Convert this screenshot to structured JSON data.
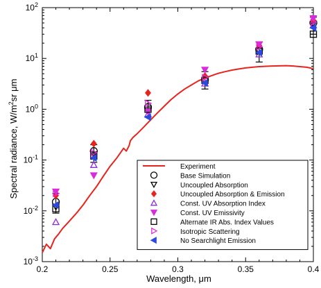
{
  "chart_data": {
    "type": "scatter",
    "xlabel": "Wavelength, μm",
    "ylabel_main": "Spectral radiance, W/m",
    "ylabel_sup": "2",
    "ylabel_rest": "sr μm",
    "xlim": [
      0.2,
      0.4
    ],
    "ylim": [
      0.001,
      100
    ],
    "yscale": "log",
    "grid": false,
    "legend_position": "lower-right",
    "x_ticks": [
      0.2,
      0.25,
      0.3,
      0.35,
      0.4
    ],
    "x_tick_labels": [
      "0.2",
      "0.25",
      "0.3",
      "0.35",
      "0.4"
    ],
    "y_ticks": [
      0.001,
      0.01,
      0.1,
      1,
      10,
      100
    ],
    "y_tick_base": [
      "10",
      "10",
      "10",
      "10",
      "10",
      "10"
    ],
    "y_tick_exp": [
      "-3",
      "-2",
      "-1",
      "0",
      "1",
      "2"
    ],
    "experiment": {
      "name": "Experiment",
      "color": "#e8231c",
      "x": [
        0.2,
        0.203,
        0.206,
        0.209,
        0.212,
        0.215,
        0.218,
        0.222,
        0.226,
        0.23,
        0.235,
        0.24,
        0.245,
        0.25,
        0.255,
        0.26,
        0.262,
        0.264,
        0.265,
        0.267,
        0.27,
        0.275,
        0.28,
        0.285,
        0.29,
        0.295,
        0.3,
        0.305,
        0.31,
        0.315,
        0.32,
        0.325,
        0.33,
        0.335,
        0.34,
        0.345,
        0.35,
        0.355,
        0.36,
        0.365,
        0.37,
        0.375,
        0.38,
        0.385,
        0.39,
        0.395,
        0.4
      ],
      "y": [
        0.0015,
        0.0022,
        0.0018,
        0.0028,
        0.0035,
        0.0045,
        0.0055,
        0.0072,
        0.0095,
        0.013,
        0.02,
        0.03,
        0.048,
        0.075,
        0.11,
        0.17,
        0.15,
        0.19,
        0.24,
        0.28,
        0.33,
        0.45,
        0.62,
        0.85,
        1.15,
        1.55,
        2.0,
        2.5,
        3.0,
        3.6,
        4.1,
        4.6,
        5.1,
        5.5,
        5.9,
        6.2,
        6.5,
        6.7,
        6.9,
        7.0,
        7.1,
        7.15,
        7.2,
        7.1,
        6.9,
        6.7,
        6.3
      ]
    },
    "categories_x": [
      0.21,
      0.238,
      0.278,
      0.32,
      0.36,
      0.4
    ],
    "series": [
      {
        "name": "Base Simulation",
        "marker": "circle-open",
        "color": "#000000",
        "values": [
          0.015,
          0.15,
          1.1,
          3.8,
          15,
          50
        ],
        "err_low": [
          0.009,
          0.09,
          0.7,
          2.5,
          8.5,
          30
        ],
        "err_high": [
          0.022,
          0.2,
          1.5,
          5.5,
          21,
          65
        ]
      },
      {
        "name": "Uncoupled Absorption",
        "marker": "triangle-down-open",
        "color": "#000000",
        "values": [
          0.012,
          0.13,
          0.95,
          3.6,
          14,
          48
        ]
      },
      {
        "name": "Uncoupled Absorption & Emission",
        "marker": "diamond-filled",
        "color": "#e8231c",
        "values": [
          0.02,
          0.21,
          2.1,
          4.5,
          18,
          55
        ]
      },
      {
        "name": "Const. UV Absorption Index",
        "marker": "triangle-up-open",
        "color": "#8a2be2",
        "values": [
          0.006,
          0.08,
          0.8,
          3.2,
          12,
          45
        ]
      },
      {
        "name": "Const. UV Emissivity",
        "marker": "triangle-down-filled",
        "color": "#d92bd9",
        "values": [
          0.024,
          0.05,
          0.9,
          6.0,
          19,
          62
        ]
      },
      {
        "name": "Alternate IR Abs. Index Values",
        "marker": "square-open",
        "color": "#000000",
        "values": [
          0.011,
          0.12,
          1.0,
          3.7,
          14,
          30
        ]
      },
      {
        "name": "Isotropic Scattering",
        "marker": "triangle-right-open",
        "color": "#e02bd9",
        "values": [
          0.022,
          0.14,
          1.3,
          4.2,
          17,
          52
        ]
      },
      {
        "name": "No Searchlight Emission",
        "marker": "triangle-left-filled",
        "color": "#2b4ae0",
        "values": [
          0.013,
          0.11,
          0.7,
          3.3,
          13,
          40
        ]
      }
    ]
  }
}
